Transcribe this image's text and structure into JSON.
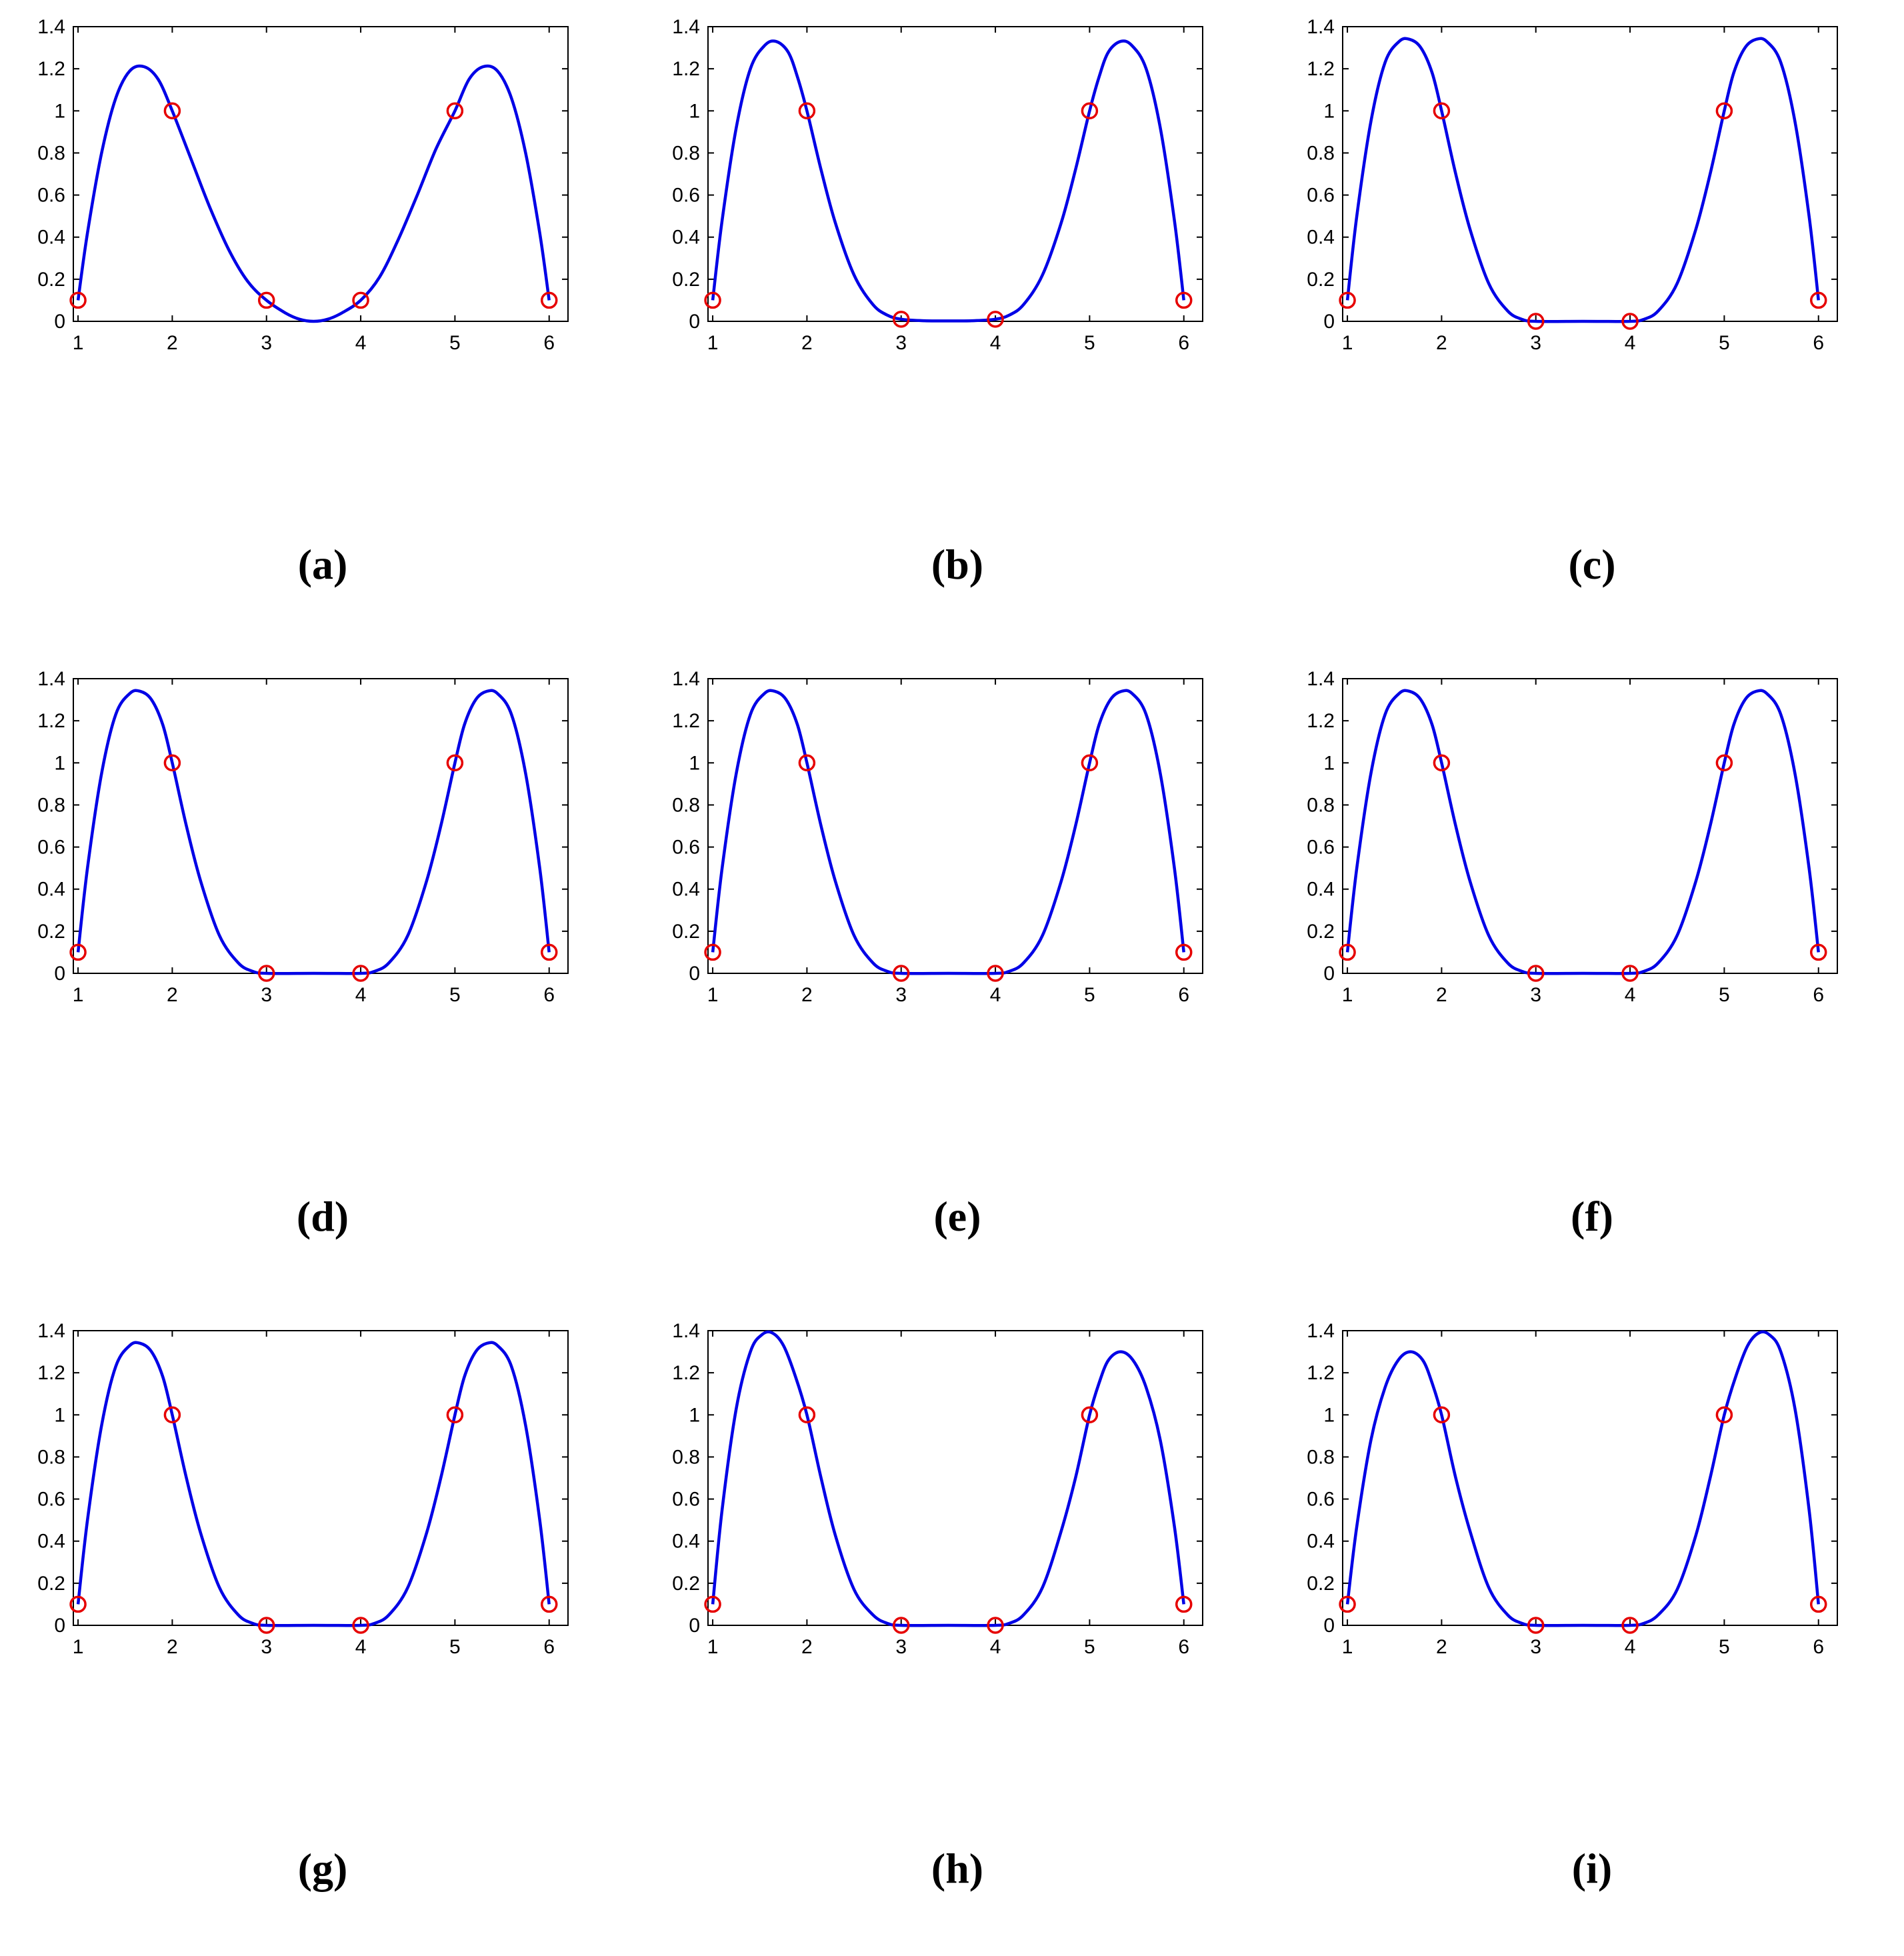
{
  "chart_data": [
    {
      "type": "line",
      "panel_label": "(a)",
      "xlim": [
        0.95,
        6.2
      ],
      "ylim": [
        0,
        1.4
      ],
      "xticks": [
        1,
        2,
        3,
        4,
        5,
        6
      ],
      "yticks": [
        0,
        0.2,
        0.4,
        0.6,
        0.8,
        1,
        1.2,
        1.4
      ],
      "points": {
        "x": [
          1,
          2,
          3,
          4,
          5,
          6
        ],
        "y": [
          0.1,
          1,
          0.1,
          0.1,
          1,
          0.1
        ]
      },
      "curve": {
        "x": [
          1,
          1.1,
          1.25,
          1.4,
          1.55,
          1.7,
          1.85,
          2,
          2.2,
          2.4,
          2.6,
          2.8,
          3,
          3.2,
          3.35,
          3.5,
          3.65,
          3.8,
          4,
          4.2,
          4.4,
          4.6,
          4.8,
          5,
          5.15,
          5.3,
          5.45,
          5.6,
          5.75,
          5.9,
          6
        ],
        "y": [
          0.1,
          0.42,
          0.8,
          1.06,
          1.19,
          1.21,
          1.15,
          1,
          0.77,
          0.54,
          0.34,
          0.19,
          0.1,
          0.04,
          0.01,
          0,
          0.01,
          0.04,
          0.1,
          0.21,
          0.39,
          0.6,
          0.82,
          1,
          1.15,
          1.21,
          1.19,
          1.06,
          0.8,
          0.42,
          0.1
        ]
      }
    },
    {
      "type": "line",
      "panel_label": "(b)",
      "xlim": [
        0.95,
        6.2
      ],
      "ylim": [
        0,
        1.4
      ],
      "xticks": [
        1,
        2,
        3,
        4,
        5,
        6
      ],
      "yticks": [
        0,
        0.2,
        0.4,
        0.6,
        0.8,
        1,
        1.2,
        1.4
      ],
      "points": {
        "x": [
          1,
          2,
          3,
          4,
          5,
          6
        ],
        "y": [
          0.1,
          1,
          0.01,
          0.01,
          1,
          0.1
        ]
      },
      "curve": {
        "x": [
          1,
          1.1,
          1.25,
          1.4,
          1.55,
          1.67,
          1.8,
          1.9,
          2,
          2.15,
          2.3,
          2.5,
          2.7,
          2.85,
          3,
          3.25,
          3.5,
          3.75,
          4,
          4.15,
          4.3,
          4.5,
          4.7,
          4.85,
          5,
          5.1,
          5.2,
          5.33,
          5.45,
          5.6,
          5.75,
          5.9,
          6
        ],
        "y": [
          0.1,
          0.48,
          0.92,
          1.2,
          1.31,
          1.33,
          1.28,
          1.16,
          1,
          0.72,
          0.47,
          0.22,
          0.08,
          0.03,
          0.01,
          0.003,
          0.002,
          0.003,
          0.01,
          0.03,
          0.08,
          0.22,
          0.47,
          0.72,
          1,
          1.16,
          1.28,
          1.33,
          1.31,
          1.2,
          0.92,
          0.48,
          0.1
        ]
      }
    },
    {
      "type": "line",
      "panel_label": "(c)",
      "xlim": [
        0.95,
        6.2
      ],
      "ylim": [
        0,
        1.4
      ],
      "xticks": [
        1,
        2,
        3,
        4,
        5,
        6
      ],
      "yticks": [
        0,
        0.2,
        0.4,
        0.6,
        0.8,
        1,
        1.2,
        1.4
      ],
      "points": {
        "x": [
          1,
          2,
          3,
          4,
          5,
          6
        ],
        "y": [
          0.1,
          1,
          0,
          0,
          1,
          0.1
        ]
      },
      "curve": {
        "x": [
          1,
          1.1,
          1.25,
          1.4,
          1.55,
          1.66,
          1.78,
          1.9,
          2,
          2.15,
          2.3,
          2.5,
          2.7,
          2.85,
          3,
          3.5,
          4,
          4.15,
          4.3,
          4.5,
          4.7,
          4.85,
          5,
          5.1,
          5.22,
          5.34,
          5.45,
          5.6,
          5.75,
          5.9,
          6
        ],
        "y": [
          0.1,
          0.5,
          0.95,
          1.23,
          1.33,
          1.34,
          1.3,
          1.18,
          1,
          0.7,
          0.44,
          0.18,
          0.05,
          0.01,
          0,
          0,
          0,
          0.01,
          0.05,
          0.18,
          0.44,
          0.7,
          1,
          1.18,
          1.3,
          1.34,
          1.33,
          1.23,
          0.95,
          0.5,
          0.1
        ]
      }
    },
    {
      "type": "line",
      "panel_label": "(d)",
      "xlim": [
        0.95,
        6.2
      ],
      "ylim": [
        0,
        1.4
      ],
      "xticks": [
        1,
        2,
        3,
        4,
        5,
        6
      ],
      "yticks": [
        0,
        0.2,
        0.4,
        0.6,
        0.8,
        1,
        1.2,
        1.4
      ],
      "points": {
        "x": [
          1,
          2,
          3,
          4,
          5,
          6
        ],
        "y": [
          0.1,
          1,
          0,
          0,
          1,
          0.1
        ]
      },
      "curve": {
        "x": [
          1,
          1.1,
          1.25,
          1.4,
          1.55,
          1.66,
          1.78,
          1.9,
          2,
          2.15,
          2.3,
          2.5,
          2.7,
          2.85,
          3,
          3.5,
          4,
          4.15,
          4.3,
          4.5,
          4.7,
          4.85,
          5,
          5.1,
          5.22,
          5.34,
          5.45,
          5.6,
          5.75,
          5.9,
          6
        ],
        "y": [
          0.1,
          0.5,
          0.95,
          1.23,
          1.33,
          1.34,
          1.3,
          1.18,
          1,
          0.7,
          0.44,
          0.18,
          0.05,
          0.01,
          0,
          0,
          0,
          0.01,
          0.05,
          0.18,
          0.44,
          0.7,
          1,
          1.18,
          1.3,
          1.34,
          1.33,
          1.23,
          0.95,
          0.5,
          0.1
        ]
      }
    },
    {
      "type": "line",
      "panel_label": "(e)",
      "xlim": [
        0.95,
        6.2
      ],
      "ylim": [
        0,
        1.4
      ],
      "xticks": [
        1,
        2,
        3,
        4,
        5,
        6
      ],
      "yticks": [
        0,
        0.2,
        0.4,
        0.6,
        0.8,
        1,
        1.2,
        1.4
      ],
      "points": {
        "x": [
          1,
          2,
          3,
          4,
          5,
          6
        ],
        "y": [
          0.1,
          1,
          0,
          0,
          1,
          0.1
        ]
      },
      "curve": {
        "x": [
          1,
          1.1,
          1.25,
          1.4,
          1.55,
          1.66,
          1.78,
          1.9,
          2,
          2.15,
          2.3,
          2.5,
          2.7,
          2.85,
          3,
          3.5,
          4,
          4.15,
          4.3,
          4.5,
          4.7,
          4.85,
          5,
          5.1,
          5.22,
          5.34,
          5.45,
          5.6,
          5.75,
          5.9,
          6
        ],
        "y": [
          0.1,
          0.5,
          0.95,
          1.23,
          1.33,
          1.34,
          1.3,
          1.18,
          1,
          0.7,
          0.44,
          0.18,
          0.05,
          0.01,
          0,
          0,
          0,
          0.01,
          0.05,
          0.18,
          0.44,
          0.7,
          1,
          1.18,
          1.3,
          1.34,
          1.33,
          1.23,
          0.95,
          0.5,
          0.1
        ]
      }
    },
    {
      "type": "line",
      "panel_label": "(f)",
      "xlim": [
        0.95,
        6.2
      ],
      "ylim": [
        0,
        1.4
      ],
      "xticks": [
        1,
        2,
        3,
        4,
        5,
        6
      ],
      "yticks": [
        0,
        0.2,
        0.4,
        0.6,
        0.8,
        1,
        1.2,
        1.4
      ],
      "points": {
        "x": [
          1,
          2,
          3,
          4,
          5,
          6
        ],
        "y": [
          0.1,
          1,
          0,
          0,
          1,
          0.1
        ]
      },
      "curve": {
        "x": [
          1,
          1.1,
          1.25,
          1.4,
          1.55,
          1.66,
          1.78,
          1.9,
          2,
          2.15,
          2.3,
          2.5,
          2.7,
          2.85,
          3,
          3.5,
          4,
          4.15,
          4.3,
          4.5,
          4.7,
          4.85,
          5,
          5.1,
          5.22,
          5.34,
          5.45,
          5.6,
          5.75,
          5.9,
          6
        ],
        "y": [
          0.1,
          0.5,
          0.95,
          1.23,
          1.33,
          1.34,
          1.3,
          1.18,
          1,
          0.7,
          0.44,
          0.18,
          0.05,
          0.01,
          0,
          0,
          0,
          0.01,
          0.05,
          0.18,
          0.44,
          0.7,
          1,
          1.18,
          1.3,
          1.34,
          1.33,
          1.23,
          0.95,
          0.5,
          0.1
        ]
      }
    },
    {
      "type": "line",
      "panel_label": "(g)",
      "xlim": [
        0.95,
        6.2
      ],
      "ylim": [
        0,
        1.4
      ],
      "xticks": [
        1,
        2,
        3,
        4,
        5,
        6
      ],
      "yticks": [
        0,
        0.2,
        0.4,
        0.6,
        0.8,
        1,
        1.2,
        1.4
      ],
      "points": {
        "x": [
          1,
          2,
          3,
          4,
          5,
          6
        ],
        "y": [
          0.1,
          1,
          0,
          0,
          1,
          0.1
        ]
      },
      "curve": {
        "x": [
          1,
          1.1,
          1.25,
          1.4,
          1.55,
          1.66,
          1.78,
          1.9,
          2,
          2.15,
          2.3,
          2.5,
          2.7,
          2.85,
          3,
          3.5,
          4,
          4.15,
          4.3,
          4.5,
          4.7,
          4.85,
          5,
          5.1,
          5.22,
          5.34,
          5.45,
          5.6,
          5.75,
          5.9,
          6
        ],
        "y": [
          0.1,
          0.5,
          0.95,
          1.23,
          1.33,
          1.34,
          1.3,
          1.18,
          1,
          0.7,
          0.44,
          0.18,
          0.05,
          0.01,
          0,
          0,
          0,
          0.01,
          0.05,
          0.18,
          0.44,
          0.7,
          1,
          1.18,
          1.3,
          1.34,
          1.33,
          1.23,
          0.95,
          0.5,
          0.1
        ]
      }
    },
    {
      "type": "line",
      "panel_label": "(h)",
      "xlim": [
        0.95,
        6.2
      ],
      "ylim": [
        0,
        1.4
      ],
      "xticks": [
        1,
        2,
        3,
        4,
        5,
        6
      ],
      "yticks": [
        0,
        0.2,
        0.4,
        0.6,
        0.8,
        1,
        1.2,
        1.4
      ],
      "points": {
        "x": [
          1,
          2,
          3,
          4,
          5,
          6
        ],
        "y": [
          0.1,
          1,
          0,
          0,
          1,
          0.1
        ]
      },
      "curve": {
        "x": [
          1,
          1.1,
          1.25,
          1.4,
          1.52,
          1.63,
          1.75,
          1.88,
          2,
          2.15,
          2.3,
          2.5,
          2.7,
          2.85,
          3,
          3.5,
          4,
          4.15,
          4.3,
          4.5,
          4.7,
          4.85,
          5,
          5.1,
          5.2,
          5.33,
          5.46,
          5.6,
          5.75,
          5.9,
          6
        ],
        "y": [
          0.1,
          0.55,
          1.03,
          1.3,
          1.38,
          1.39,
          1.33,
          1.18,
          1,
          0.7,
          0.43,
          0.17,
          0.05,
          0.01,
          0,
          0,
          0,
          0.01,
          0.05,
          0.18,
          0.45,
          0.7,
          1,
          1.15,
          1.26,
          1.3,
          1.26,
          1.13,
          0.88,
          0.47,
          0.1
        ]
      }
    },
    {
      "type": "line",
      "panel_label": "(i)",
      "xlim": [
        0.95,
        6.2
      ],
      "ylim": [
        0,
        1.4
      ],
      "xticks": [
        1,
        2,
        3,
        4,
        5,
        6
      ],
      "yticks": [
        0,
        0.2,
        0.4,
        0.6,
        0.8,
        1,
        1.2,
        1.4
      ],
      "points": {
        "x": [
          1,
          2,
          3,
          4,
          5,
          6
        ],
        "y": [
          0.1,
          1,
          0,
          0,
          1,
          0.1
        ]
      },
      "curve": {
        "x": [
          1,
          1.1,
          1.25,
          1.4,
          1.54,
          1.67,
          1.8,
          1.9,
          2,
          2.15,
          2.3,
          2.5,
          2.7,
          2.85,
          3,
          3.5,
          4,
          4.15,
          4.3,
          4.5,
          4.7,
          4.85,
          5,
          5.12,
          5.25,
          5.37,
          5.48,
          5.6,
          5.75,
          5.9,
          6
        ],
        "y": [
          0.1,
          0.47,
          0.88,
          1.13,
          1.26,
          1.3,
          1.26,
          1.15,
          1,
          0.7,
          0.45,
          0.18,
          0.05,
          0.01,
          0,
          0,
          0,
          0.01,
          0.05,
          0.17,
          0.43,
          0.7,
          1,
          1.18,
          1.33,
          1.39,
          1.38,
          1.3,
          1.03,
          0.55,
          0.1
        ]
      }
    }
  ],
  "colors": {
    "curve": "#0000e6",
    "markers": "#e60000",
    "axes": "#000000"
  }
}
